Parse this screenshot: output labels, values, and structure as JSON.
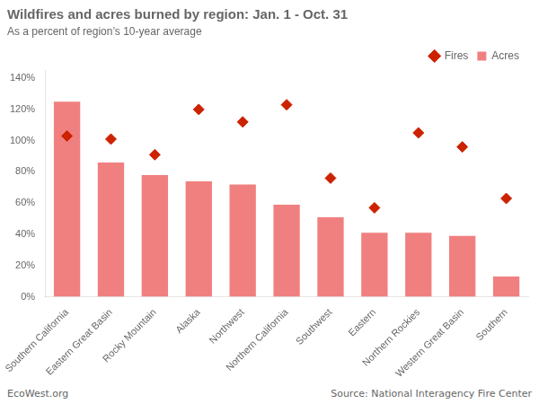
{
  "chart_data": {
    "type": "bar",
    "title": "Wildfires and acres burned by region: Jan. 1 - Oct. 31",
    "subtitle": "As a percent of region’s 10-year average",
    "categories": [
      "Southern California",
      "Eastern Great Basin",
      "Rocky Mountain",
      "Alaska",
      "Northwest",
      "Northern California",
      "Southwest",
      "Eastern",
      "Northern Rockies",
      "Western Great Basin",
      "Southern"
    ],
    "series": [
      {
        "name": "Acres",
        "type": "bar",
        "color": "#F08080",
        "values": [
          125,
          86,
          78,
          74,
          72,
          59,
          51,
          41,
          41,
          39,
          13
        ]
      },
      {
        "name": "Fires",
        "type": "scatter",
        "marker": "diamond",
        "color": "#CC2200",
        "values": [
          103,
          101,
          91,
          120,
          112,
          123,
          76,
          57,
          105,
          96,
          63
        ]
      }
    ],
    "ylim": [
      0,
      145
    ],
    "yticks": [
      {
        "value": 0,
        "label": "0%"
      },
      {
        "value": 20,
        "label": "20%"
      },
      {
        "value": 40,
        "label": "40%"
      },
      {
        "value": 60,
        "label": "60%"
      },
      {
        "value": 80,
        "label": "80%"
      },
      {
        "value": 100,
        "label": "100%"
      },
      {
        "value": 120,
        "label": "120%"
      },
      {
        "value": 140,
        "label": "140%"
      }
    ],
    "grid": false,
    "legend": "upper right",
    "annotations": [
      "EcoWest.org",
      "Source: National Interagency Fire Center"
    ]
  }
}
